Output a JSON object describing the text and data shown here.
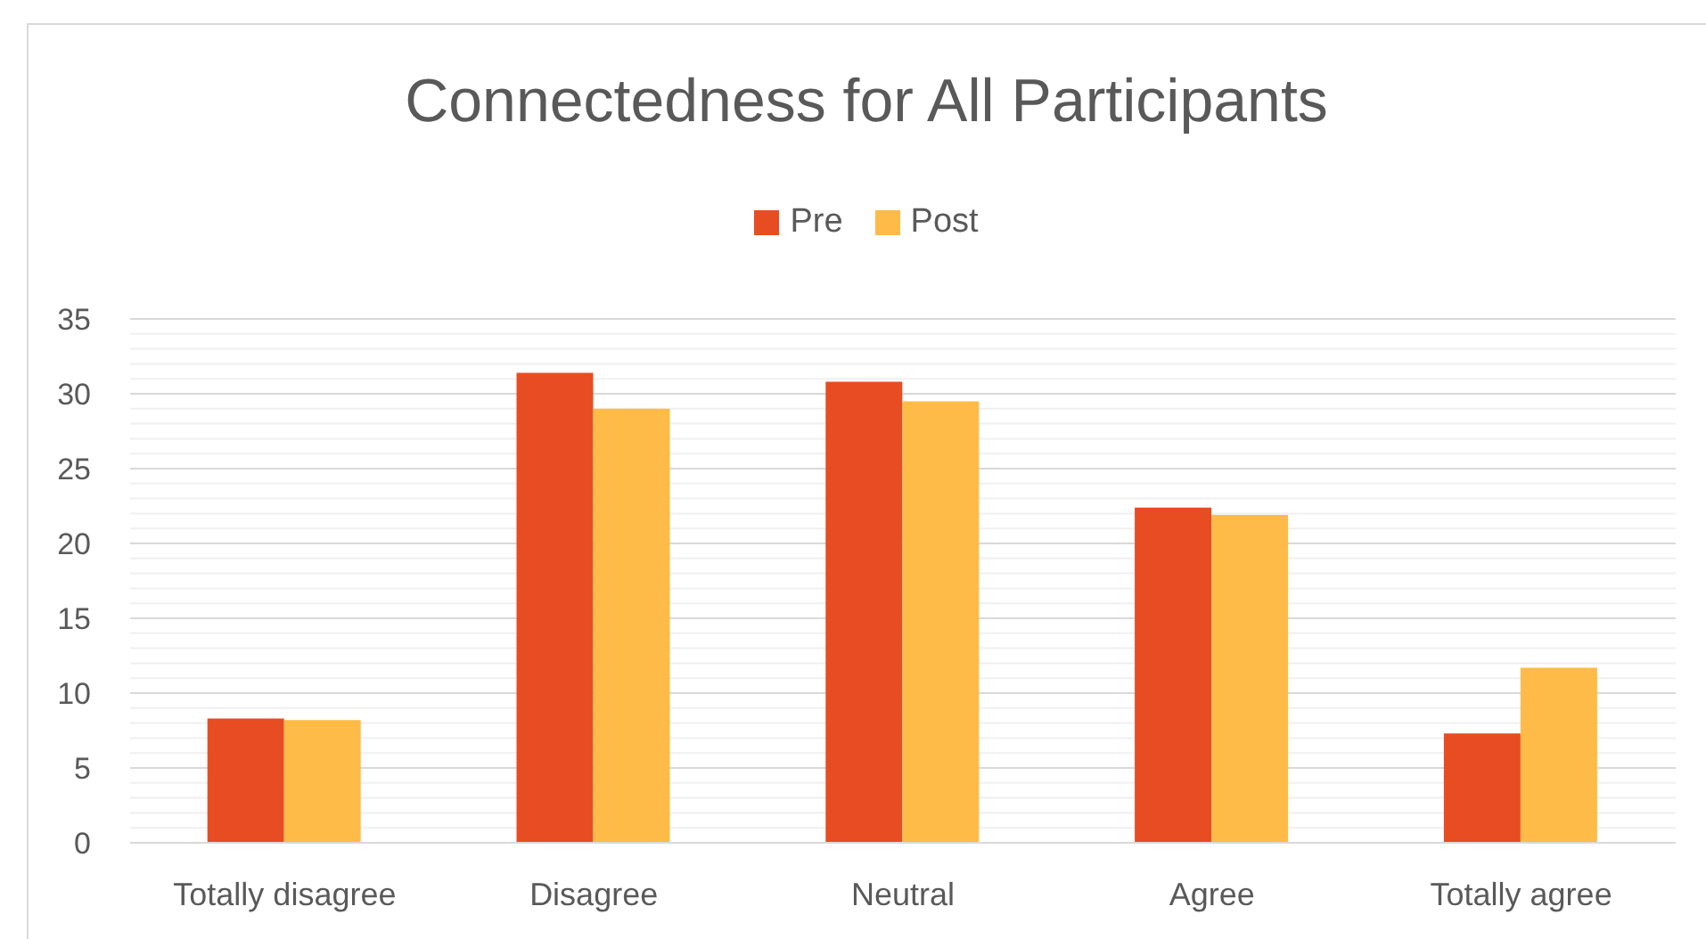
{
  "chart_data": {
    "type": "bar",
    "title": "Connectedness for All Participants",
    "categories": [
      "Totally disagree",
      "Disagree",
      "Neutral",
      "Agree",
      "Totally agree"
    ],
    "series": [
      {
        "name": "Pre",
        "color": "#e84c22",
        "values": [
          8.3,
          31.4,
          30.8,
          22.4,
          7.3
        ]
      },
      {
        "name": "Post",
        "color": "#ffbb47",
        "values": [
          8.2,
          29.0,
          29.5,
          21.9,
          11.7
        ]
      }
    ],
    "ylim": [
      0,
      35
    ],
    "yticks": [
      0,
      {
        "value": 1,
        "label": null
      },
      {
        "value": 2,
        "label": null
      },
      {
        "value": 3,
        "label": null
      },
      {
        "value": 4,
        "label": null
      },
      5,
      {
        "value": 6,
        "label": null
      },
      {
        "value": 7,
        "label": null
      },
      {
        "value": 8,
        "label": null
      },
      {
        "value": 9,
        "label": null
      },
      10,
      {
        "value": 11,
        "label": null
      },
      {
        "value": 12,
        "label": null
      },
      {
        "value": 13,
        "label": null
      },
      {
        "value": 14,
        "label": null
      },
      15,
      {
        "value": 16,
        "label": null
      },
      {
        "value": 17,
        "label": null
      },
      {
        "value": 18,
        "label": null
      },
      {
        "value": 19,
        "label": null
      },
      20,
      {
        "value": 21,
        "label": null
      },
      {
        "value": 22,
        "label": null
      },
      {
        "value": 23,
        "label": null
      },
      {
        "value": 24,
        "label": null
      },
      25,
      {
        "value": 26,
        "label": null
      },
      {
        "value": 27,
        "label": null
      },
      {
        "value": 28,
        "label": null
      },
      {
        "value": 29,
        "label": null
      },
      30,
      {
        "value": 31,
        "label": null
      },
      {
        "value": 32,
        "label": null
      },
      {
        "value": 33,
        "label": null
      },
      {
        "value": 34,
        "label": null
      },
      35
    ],
    "grid": "y",
    "legend": "top"
  }
}
